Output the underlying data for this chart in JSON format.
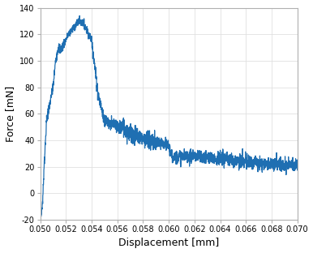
{
  "xlabel": "Displacement [mm]",
  "ylabel": "Force [mN]",
  "xlim": [
    0.05,
    0.07
  ],
  "ylim": [
    -20,
    140
  ],
  "xticks": [
    0.05,
    0.052,
    0.054,
    0.056,
    0.058,
    0.06,
    0.062,
    0.064,
    0.066,
    0.068,
    0.07
  ],
  "yticks": [
    -20,
    0,
    20,
    40,
    60,
    80,
    100,
    120,
    140
  ],
  "line_color": "#1f6fb2",
  "background_color": "#ffffff",
  "grid_color": "#e0e0e0",
  "spine_color": "#b0b0b0",
  "tick_label_fontsize": 7.0,
  "axis_label_fontsize": 9.0
}
